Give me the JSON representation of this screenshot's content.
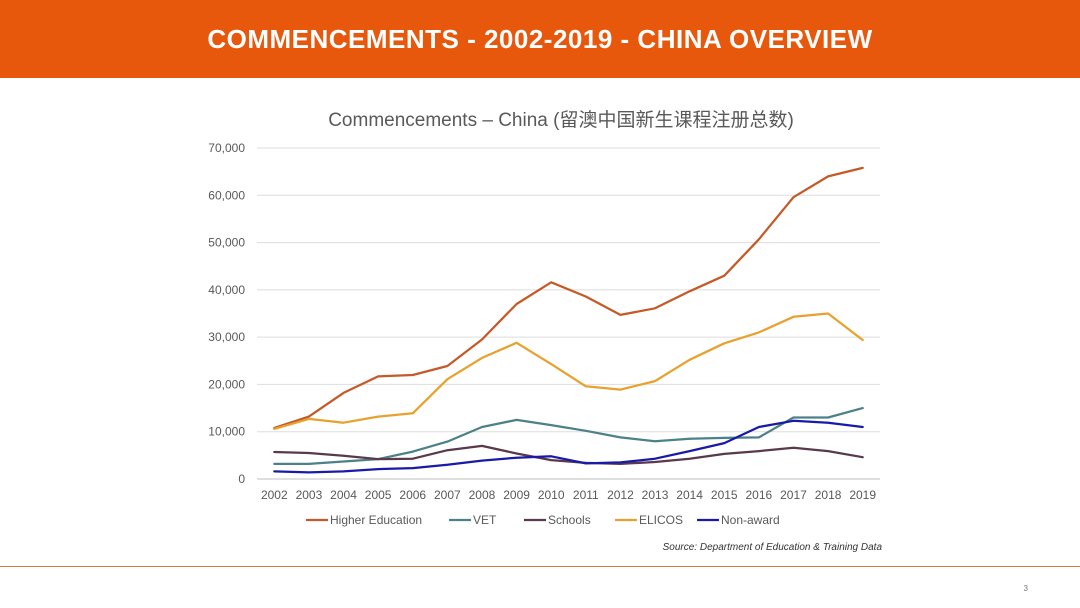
{
  "slide": {
    "banner_title": "COMMENCEMENTS  - 2002-2019 - CHINA OVERVIEW",
    "banner_color": "#e8580c",
    "source": "Source: Department of Education & Training Data",
    "page_number": "3"
  },
  "chart_data": {
    "type": "line",
    "title": "Commencements – China (留澳中国新生课程注册总数)",
    "xlabel": "",
    "ylabel": "",
    "ylim": [
      0,
      70000
    ],
    "yticks": [
      "0",
      "10,000",
      "20,000",
      "30,000",
      "40,000",
      "50,000",
      "60,000",
      "70,000"
    ],
    "grid": true,
    "legend_position": "bottom",
    "categories": [
      "2002",
      "2003",
      "2004",
      "2005",
      "2006",
      "2007",
      "2008",
      "2009",
      "2010",
      "2011",
      "2012",
      "2013",
      "2014",
      "2015",
      "2016",
      "2017",
      "2018",
      "2019"
    ],
    "series": [
      {
        "name": "Higher Education",
        "color": "#c55a28",
        "values": [
          10800,
          13200,
          18200,
          21700,
          22000,
          23900,
          29500,
          37000,
          41600,
          38600,
          34700,
          36100,
          39700,
          43000,
          50700,
          59600,
          64000,
          65800
        ]
      },
      {
        "name": "VET",
        "color": "#4d8189",
        "values": [
          3200,
          3200,
          3700,
          4200,
          5800,
          7900,
          11000,
          12500,
          11400,
          10200,
          8800,
          8000,
          8500,
          8700,
          8800,
          13000,
          13000,
          15000
        ]
      },
      {
        "name": "Schools",
        "color": "#5a3a4a",
        "values": [
          5700,
          5500,
          4900,
          4200,
          4300,
          6100,
          7000,
          5400,
          4000,
          3400,
          3200,
          3600,
          4300,
          5300,
          5900,
          6600,
          5900,
          4600
        ]
      },
      {
        "name": "ELICOS",
        "color": "#e8a12e",
        "values": [
          10600,
          12700,
          11900,
          13200,
          13900,
          21100,
          25600,
          28800,
          24300,
          19600,
          18900,
          20700,
          25200,
          28700,
          31000,
          34300,
          35000,
          29400
        ]
      },
      {
        "name": "Non-award",
        "color": "#1a1aa8",
        "values": [
          1600,
          1400,
          1600,
          2100,
          2300,
          3000,
          3900,
          4500,
          4800,
          3300,
          3500,
          4300,
          5900,
          7600,
          11000,
          12300,
          11900,
          11000
        ]
      }
    ]
  }
}
